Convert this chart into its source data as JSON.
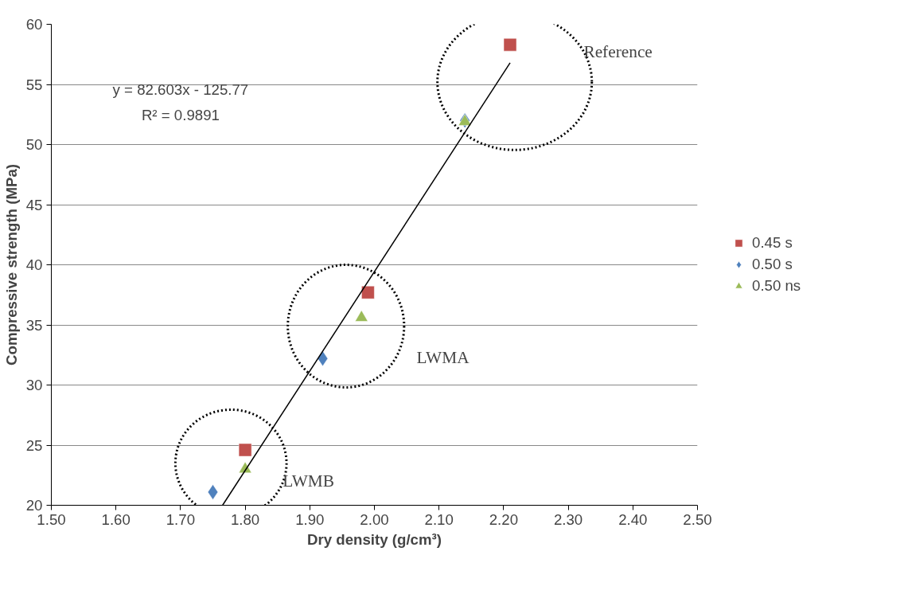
{
  "chart_data": {
    "type": "scatter",
    "xlabel": "Dry density (g/cm³)",
    "ylabel": "Compressive strength (MPa)",
    "xlim": [
      1.5,
      2.5
    ],
    "xticks": [
      {
        "value": 1.5,
        "label": "1.50"
      },
      {
        "value": 1.6,
        "label": "1.60"
      },
      {
        "value": 1.7,
        "label": "1.70"
      },
      {
        "value": 1.8,
        "label": "1.80"
      },
      {
        "value": 1.9,
        "label": "1.90"
      },
      {
        "value": 2.0,
        "label": "2.00"
      },
      {
        "value": 2.1,
        "label": "2.10"
      },
      {
        "value": 2.2,
        "label": "2.20"
      },
      {
        "value": 2.3,
        "label": "2.30"
      },
      {
        "value": 2.4,
        "label": "2.40"
      },
      {
        "value": 2.5,
        "label": "2.50"
      }
    ],
    "ylim": [
      20,
      60
    ],
    "yticks": [
      20,
      25,
      30,
      35,
      40,
      45,
      50,
      55,
      60
    ],
    "grid": "y",
    "legend": "right",
    "series": [
      {
        "name": "0.45 s",
        "color": "#c0504d",
        "marker": "square",
        "x": [
          2.21,
          1.99,
          1.8
        ],
        "values": [
          58.3,
          37.7,
          24.6
        ]
      },
      {
        "name": "0.50 s",
        "color": "#4f81bd",
        "marker": "diamond",
        "x": [
          2.14,
          1.92,
          1.75
        ],
        "values": [
          52.0,
          32.2,
          21.1
        ]
      },
      {
        "name": "0.50 ns",
        "color": "#9bbb59",
        "marker": "triangle",
        "x": [
          2.14,
          1.98,
          1.8
        ],
        "values": [
          51.9,
          35.6,
          23.0
        ]
      },
      {
        "type": "line",
        "color": "#000000",
        "x": [
          1.765,
          2.21
        ],
        "values": [
          20.0,
          56.8
        ]
      }
    ],
    "annotations": [
      "y = 82.603x - 125.77\nR² = 0.9891",
      "Reference",
      "LWMA",
      "LWMB"
    ]
  }
}
